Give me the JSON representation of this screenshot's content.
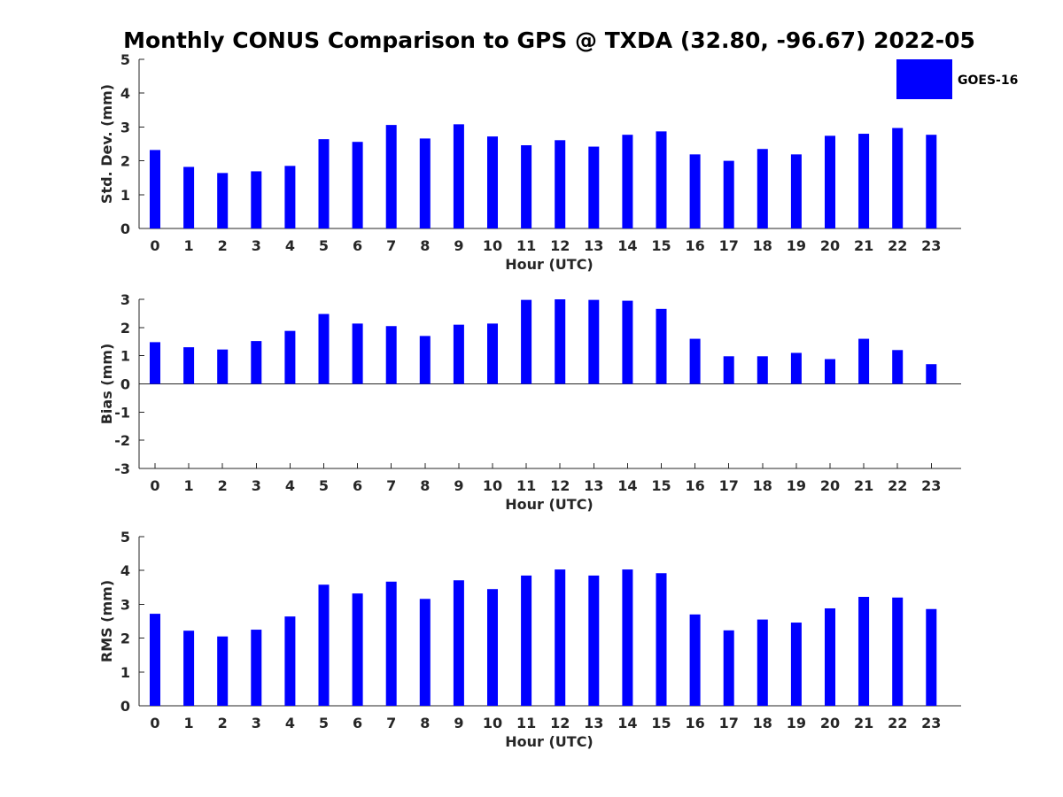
{
  "title": "Monthly CONUS Comparison to GPS @ TXDA (32.80, -96.67) 2022-05",
  "legend": {
    "label": "GOES-16",
    "color": "#0000ff",
    "placement": "top-right"
  },
  "chart_data": [
    {
      "type": "bar",
      "categories": [
        "0",
        "1",
        "2",
        "3",
        "4",
        "5",
        "6",
        "7",
        "8",
        "9",
        "10",
        "11",
        "12",
        "13",
        "14",
        "15",
        "16",
        "17",
        "18",
        "19",
        "20",
        "21",
        "22",
        "23"
      ],
      "series": [
        {
          "name": "GOES-16",
          "values": [
            2.32,
            1.82,
            1.64,
            1.69,
            1.85,
            2.64,
            2.56,
            3.06,
            2.66,
            3.08,
            2.72,
            2.46,
            2.61,
            2.42,
            2.77,
            2.87,
            2.19,
            2.0,
            2.35,
            2.19,
            2.74,
            2.8,
            2.97,
            2.77
          ]
        }
      ],
      "xlabel": "Hour (UTC)",
      "ylabel": "Std. Dev. (mm)",
      "ylim": [
        0,
        5
      ],
      "yticks": [
        "0",
        "1",
        "2",
        "3",
        "4",
        "5"
      ],
      "grid": false
    },
    {
      "type": "bar",
      "categories": [
        "0",
        "1",
        "2",
        "3",
        "4",
        "5",
        "6",
        "7",
        "8",
        "9",
        "10",
        "11",
        "12",
        "13",
        "14",
        "15",
        "16",
        "17",
        "18",
        "19",
        "20",
        "21",
        "22",
        "23"
      ],
      "series": [
        {
          "name": "GOES-16",
          "values": [
            1.48,
            1.3,
            1.22,
            1.52,
            1.88,
            2.48,
            2.14,
            2.05,
            1.7,
            2.1,
            2.14,
            2.98,
            3.0,
            2.98,
            2.95,
            2.66,
            1.6,
            0.98,
            0.98,
            1.1,
            0.88,
            1.6,
            1.2,
            0.7
          ]
        }
      ],
      "xlabel": "Hour (UTC)",
      "ylabel": "Bias (mm)",
      "ylim": [
        -3,
        3
      ],
      "yticks": [
        "-3",
        "-2",
        "-1",
        "0",
        "1",
        "2",
        "3"
      ],
      "zero_line": true,
      "grid": false
    },
    {
      "type": "bar",
      "categories": [
        "0",
        "1",
        "2",
        "3",
        "4",
        "5",
        "6",
        "7",
        "8",
        "9",
        "10",
        "11",
        "12",
        "13",
        "14",
        "15",
        "16",
        "17",
        "18",
        "19",
        "20",
        "21",
        "22",
        "23"
      ],
      "series": [
        {
          "name": "GOES-16",
          "values": [
            2.72,
            2.22,
            2.05,
            2.25,
            2.64,
            3.58,
            3.32,
            3.67,
            3.16,
            3.71,
            3.45,
            3.85,
            4.03,
            3.85,
            4.03,
            3.92,
            2.7,
            2.23,
            2.55,
            2.46,
            2.88,
            3.22,
            3.2,
            2.86
          ]
        }
      ],
      "xlabel": "Hour (UTC)",
      "ylabel": "RMS (mm)",
      "ylim": [
        0,
        5
      ],
      "yticks": [
        "0",
        "1",
        "2",
        "3",
        "4",
        "5"
      ],
      "grid": false
    }
  ]
}
